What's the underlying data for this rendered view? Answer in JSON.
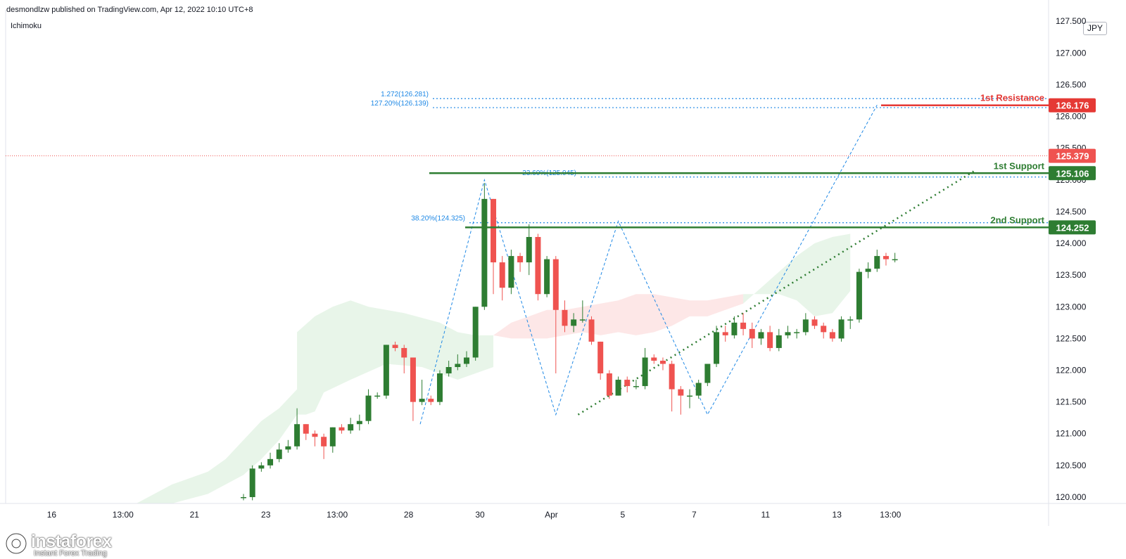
{
  "header": {
    "publisher": "desmondlzw published on TradingView.com, Apr 12, 2022 10:10 UTC+8",
    "indicator": "Ichimoku",
    "currency": "JPY"
  },
  "watermark": {
    "name": "instaforex",
    "tagline": "Instant Forex Trading"
  },
  "colors": {
    "up": "#2e7d32",
    "down": "#ef5350",
    "support": "#2e7d32",
    "resistance": "#e53935",
    "fib": "#1e88e5",
    "cloud_bull": "#e8f5e9",
    "cloud_bear": "#fde7e7"
  },
  "chart_data": {
    "type": "candlestick",
    "title": "",
    "ylim": [
      119.9,
      127.68
    ],
    "y_ticks": [
      "127.500",
      "127.000",
      "126.500",
      "126.000",
      "125.500",
      "125.000",
      "124.500",
      "124.000",
      "123.500",
      "123.000",
      "122.500",
      "122.000",
      "121.500",
      "121.000",
      "120.500",
      "120.000"
    ],
    "x_ticks": [
      {
        "label": "16",
        "i": -21.5
      },
      {
        "label": "13:00",
        "i": -13.5
      },
      {
        "label": "21",
        "i": -5.5
      },
      {
        "label": "23",
        "i": 2.5
      },
      {
        "label": "13:00",
        "i": 10.5
      },
      {
        "label": "28",
        "i": 18.5
      },
      {
        "label": "30",
        "i": 26.5
      },
      {
        "label": "Apr",
        "i": 34.5
      },
      {
        "label": "5",
        "i": 42.5
      },
      {
        "label": "7",
        "i": 50.5
      },
      {
        "label": "11",
        "i": 58.5
      },
      {
        "label": "13",
        "i": 66.5
      },
      {
        "label": "13:00",
        "i": 72.5
      }
    ],
    "candles": [
      [
        120.0,
        120.0,
        119.95,
        120.05
      ],
      [
        120.0,
        120.45,
        120.5,
        119.95
      ],
      [
        120.45,
        120.5,
        120.55,
        120.4
      ],
      [
        120.5,
        120.6,
        120.7,
        120.45
      ],
      [
        120.6,
        120.75,
        120.85,
        120.55
      ],
      [
        120.75,
        120.8,
        120.9,
        120.7
      ],
      [
        120.8,
        121.15,
        121.4,
        120.75
      ],
      [
        121.15,
        121.0,
        121.15,
        120.9
      ],
      [
        121.0,
        120.95,
        121.05,
        120.8
      ],
      [
        120.95,
        120.8,
        121.0,
        120.6
      ],
      [
        120.8,
        121.1,
        121.1,
        120.7
      ],
      [
        121.1,
        121.05,
        121.15,
        121.0
      ],
      [
        121.05,
        121.15,
        121.25,
        121.0
      ],
      [
        121.15,
        121.2,
        121.3,
        121.05
      ],
      [
        121.2,
        121.6,
        121.7,
        121.15
      ],
      [
        121.6,
        121.6,
        121.65,
        121.55
      ],
      [
        121.6,
        122.4,
        122.4,
        121.55
      ],
      [
        122.4,
        122.35,
        122.45,
        122.3
      ],
      [
        122.35,
        122.2,
        122.4,
        121.95
      ],
      [
        122.2,
        121.5,
        122.2,
        121.2
      ],
      [
        121.5,
        121.55,
        121.85,
        121.45
      ],
      [
        121.55,
        121.5,
        121.6,
        121.45
      ],
      [
        121.5,
        121.95,
        122.0,
        121.45
      ],
      [
        121.95,
        122.05,
        122.15,
        121.9
      ],
      [
        122.05,
        122.1,
        122.25,
        122.0
      ],
      [
        122.1,
        122.2,
        122.3,
        122.05
      ],
      [
        122.2,
        123.0,
        123.0,
        122.15
      ],
      [
        123.0,
        124.7,
        124.95,
        122.95
      ],
      [
        124.7,
        123.7,
        124.7,
        123.2
      ],
      [
        123.7,
        123.3,
        123.8,
        123.1
      ],
      [
        123.3,
        123.8,
        123.9,
        123.2
      ],
      [
        123.8,
        123.7,
        123.85,
        123.55
      ],
      [
        123.7,
        124.1,
        124.3,
        123.5
      ],
      [
        124.1,
        123.2,
        124.15,
        123.1
      ],
      [
        123.2,
        123.75,
        123.8,
        123.15
      ],
      [
        123.75,
        122.95,
        123.8,
        121.95
      ],
      [
        122.95,
        122.7,
        123.1,
        122.6
      ],
      [
        122.7,
        122.8,
        122.9,
        122.6
      ],
      [
        122.8,
        122.8,
        123.1,
        122.75
      ],
      [
        122.8,
        122.45,
        122.85,
        122.4
      ],
      [
        122.45,
        121.95,
        122.45,
        121.85
      ],
      [
        121.95,
        121.6,
        122.0,
        121.55
      ],
      [
        121.6,
        121.85,
        121.9,
        121.6
      ],
      [
        121.85,
        121.75,
        121.9,
        121.65
      ],
      [
        121.75,
        121.75,
        121.85,
        121.7
      ],
      [
        121.75,
        122.2,
        122.35,
        121.7
      ],
      [
        122.2,
        122.15,
        122.25,
        122.1
      ],
      [
        122.15,
        122.1,
        122.2,
        122.0
      ],
      [
        122.1,
        121.7,
        122.15,
        121.35
      ],
      [
        121.7,
        121.6,
        121.75,
        121.3
      ],
      [
        121.6,
        121.6,
        121.7,
        121.4
      ],
      [
        121.6,
        121.8,
        121.85,
        121.55
      ],
      [
        121.8,
        122.1,
        122.1,
        121.75
      ],
      [
        122.1,
        122.6,
        122.7,
        122.05
      ],
      [
        122.6,
        122.55,
        122.7,
        122.45
      ],
      [
        122.55,
        122.75,
        122.85,
        122.5
      ],
      [
        122.75,
        122.65,
        122.9,
        122.55
      ],
      [
        122.65,
        122.5,
        122.75,
        122.35
      ],
      [
        122.5,
        122.6,
        122.65,
        122.4
      ],
      [
        122.6,
        122.35,
        122.7,
        122.3
      ],
      [
        122.35,
        122.55,
        122.65,
        122.3
      ],
      [
        122.55,
        122.6,
        122.7,
        122.5
      ],
      [
        122.6,
        122.6,
        122.65,
        122.5
      ],
      [
        122.6,
        122.8,
        122.9,
        122.55
      ],
      [
        122.8,
        122.7,
        122.85,
        122.65
      ],
      [
        122.7,
        122.6,
        122.75,
        122.5
      ],
      [
        122.6,
        122.5,
        122.65,
        122.45
      ],
      [
        122.5,
        122.8,
        122.85,
        122.45
      ],
      [
        122.8,
        122.8,
        122.85,
        122.65
      ],
      [
        122.8,
        123.55,
        123.6,
        122.75
      ],
      [
        123.55,
        123.6,
        123.7,
        123.45
      ],
      [
        123.6,
        123.8,
        123.9,
        123.55
      ],
      [
        123.8,
        123.75,
        123.85,
        123.65
      ],
      [
        123.75,
        123.75,
        123.85,
        123.7
      ]
    ],
    "levels": [
      {
        "label": "1st Resistance",
        "price_label": "126.176",
        "value": 126.176,
        "color": "#e53935"
      },
      {
        "label": "1st Support",
        "price_label": "125.106",
        "value": 125.106,
        "color": "#2e7d32"
      },
      {
        "label": "2nd Support",
        "price_label": "124.252",
        "value": 124.252,
        "color": "#2e7d32"
      }
    ],
    "fib_labels": [
      {
        "text": "1.272(126.281)",
        "value": 126.281
      },
      {
        "text": "127.20%(126.139)",
        "value": 126.139
      },
      {
        "text": "23.60%(125.045)",
        "value": 125.045
      },
      {
        "text": "38.20%(124.325)",
        "value": 124.325
      }
    ],
    "last_price": {
      "label": "125.379",
      "value": 125.379,
      "color": "#ef5350"
    }
  }
}
